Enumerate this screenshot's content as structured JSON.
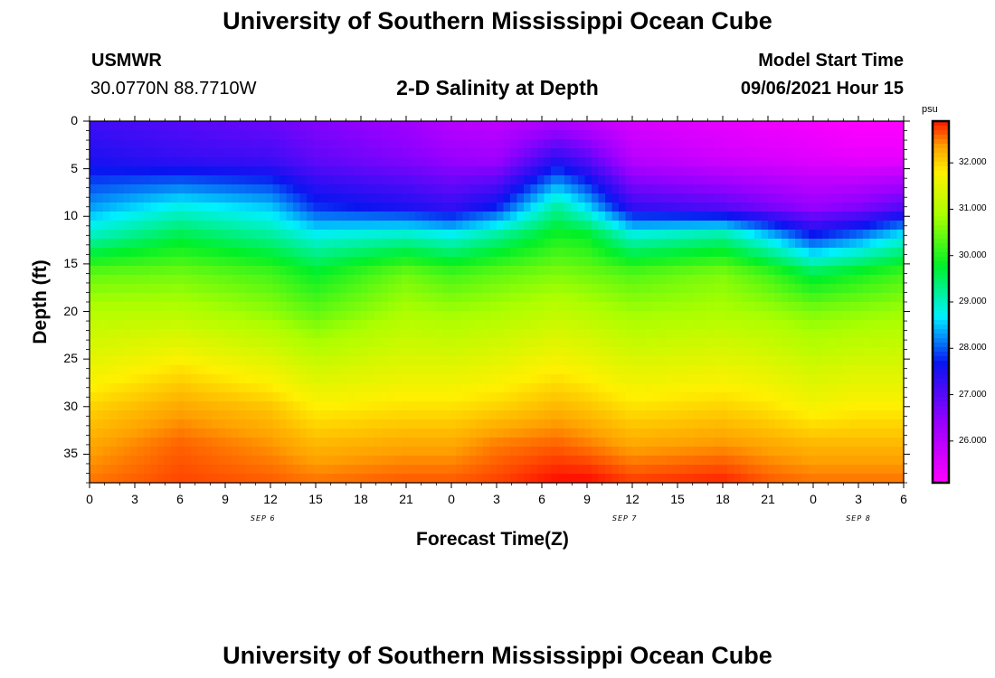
{
  "header": {
    "title": "University of Southern Mississippi Ocean Cube",
    "footer_title": "University of Southern Mississippi Ocean Cube",
    "station": "USMWR",
    "coords": "30.0770N  88.7710W",
    "plot_title": "2-D Salinity at Depth",
    "model_label": "Model Start Time",
    "model_time": "09/06/2021 Hour 15"
  },
  "chart_data": {
    "type": "heatmap",
    "title": "2-D Salinity at Depth",
    "xlabel": "Forecast Time(Z)",
    "ylabel": "Depth (ft)",
    "x_hours": [
      0,
      54
    ],
    "y_range_ft": [
      0,
      38
    ],
    "x_tick_labels": [
      "0",
      "3",
      "6",
      "9",
      "12",
      "15",
      "18",
      "21",
      "0",
      "3",
      "6",
      "9",
      "12",
      "15",
      "18",
      "21",
      "0",
      "3",
      "6"
    ],
    "y_tick_labels": [
      "0",
      "5",
      "10",
      "15",
      "20",
      "25",
      "30",
      "35"
    ],
    "date_labels": [
      {
        "label": "SEP 6",
        "hour": 11.5
      },
      {
        "label": "SEP 7",
        "hour": 35.5
      },
      {
        "label": "SEP 8",
        "hour": 51.0
      }
    ],
    "colorbar": {
      "unit": "psu",
      "range": [
        25.1,
        32.9
      ],
      "tick_labels": [
        "32.000",
        "31.000",
        "30.000",
        "29.000",
        "28.000",
        "27.000",
        "26.000"
      ],
      "tick_values": [
        32,
        31,
        30,
        29,
        28,
        27,
        26
      ]
    },
    "profiles": {
      "hours": [
        0,
        6,
        12,
        15,
        21,
        24,
        27,
        31,
        33,
        36,
        42,
        45,
        48,
        51,
        54
      ],
      "depths": [
        0,
        4,
        9,
        12,
        16,
        20,
        26,
        30,
        34,
        37.5
      ],
      "salinity": [
        [
          27.2,
          27.5,
          28.3,
          29.0,
          30.4,
          31.0,
          31.6,
          32.0,
          32.3,
          32.5
        ],
        [
          27.0,
          27.3,
          28.8,
          29.6,
          30.5,
          31.0,
          31.9,
          32.3,
          32.6,
          32.7
        ],
        [
          26.8,
          27.2,
          28.5,
          29.2,
          30.2,
          30.7,
          31.6,
          32.1,
          32.4,
          32.6
        ],
        [
          26.6,
          26.9,
          27.8,
          28.8,
          29.8,
          30.4,
          31.3,
          31.8,
          32.2,
          32.5
        ],
        [
          26.3,
          26.6,
          27.5,
          29.0,
          30.5,
          30.9,
          31.5,
          31.9,
          32.3,
          32.6
        ],
        [
          26.0,
          26.4,
          27.3,
          28.8,
          30.2,
          30.8,
          31.5,
          31.9,
          32.3,
          32.6
        ],
        [
          25.9,
          26.3,
          27.7,
          29.2,
          30.4,
          30.9,
          31.6,
          32.0,
          32.5,
          32.7
        ],
        [
          26.1,
          27.4,
          29.2,
          29.9,
          30.6,
          31.1,
          31.8,
          32.2,
          32.6,
          32.9
        ],
        [
          25.9,
          27.0,
          28.6,
          29.8,
          30.5,
          31.0,
          31.7,
          32.1,
          32.5,
          32.9
        ],
        [
          25.6,
          26.0,
          27.3,
          28.9,
          30.3,
          30.8,
          31.5,
          31.9,
          32.3,
          32.7
        ],
        [
          25.4,
          25.7,
          27.0,
          29.2,
          30.6,
          30.9,
          31.6,
          32.0,
          32.4,
          32.8
        ],
        [
          25.3,
          25.6,
          26.7,
          28.5,
          30.2,
          30.8,
          31.5,
          31.9,
          32.3,
          32.6
        ],
        [
          25.2,
          25.5,
          26.4,
          27.7,
          29.6,
          30.6,
          31.3,
          31.7,
          32.2,
          32.5
        ],
        [
          25.1,
          25.4,
          26.6,
          28.1,
          29.9,
          30.7,
          31.4,
          31.8,
          32.2,
          32.5
        ],
        [
          25.1,
          25.4,
          27.0,
          28.7,
          30.2,
          30.8,
          31.4,
          31.8,
          32.2,
          32.5
        ]
      ]
    }
  }
}
